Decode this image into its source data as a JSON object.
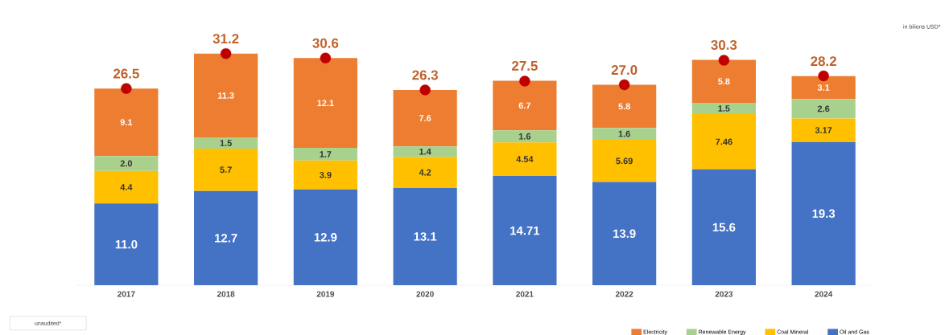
{
  "chart_data": {
    "type": "bar",
    "stacked": true,
    "legend": "bottom right",
    "categories": [
      "2017",
      "2018",
      "2019",
      "2020",
      "2021",
      "2022",
      "2023",
      "2024"
    ],
    "series": [
      {
        "name": "Oil and Gas",
        "color": "#4472c4",
        "values": [
          11.0,
          12.7,
          12.9,
          13.1,
          14.71,
          13.9,
          15.6,
          19.3
        ],
        "value_labels": [
          "11.0",
          "12.7",
          "12.9",
          "13.1",
          "14.71",
          "13.9",
          "15.6",
          "19.3"
        ]
      },
      {
        "name": "Coal Mineral",
        "color": "#ffc000",
        "values": [
          4.4,
          5.7,
          3.9,
          4.2,
          4.54,
          5.69,
          7.46,
          3.17
        ],
        "value_labels": [
          "4.4",
          "5.7",
          "3.9",
          "4.2",
          "4.54",
          "5.69",
          "7.46",
          "3.17"
        ]
      },
      {
        "name": "Renewable Energy",
        "color": "#a9d18e",
        "values": [
          2.0,
          1.5,
          1.7,
          1.4,
          1.6,
          1.6,
          1.5,
          2.6
        ],
        "value_labels": [
          "2.0",
          "1.5",
          "1.7",
          "1.4",
          "1.6",
          "1.6",
          "1.5",
          "2.6"
        ]
      },
      {
        "name": "Electricity",
        "color": "#ed7d31",
        "values": [
          9.1,
          11.3,
          12.1,
          7.6,
          6.7,
          5.8,
          5.8,
          3.1
        ],
        "value_labels": [
          "9.1",
          "11.3",
          "12.1",
          "7.6",
          "6.7",
          "5.8",
          "5.8",
          "3.1"
        ]
      },
      {
        "type": "scatter",
        "color": "#c00000",
        "values": [
          26.5,
          31.2,
          30.6,
          26.3,
          27.5,
          27.0,
          30.3,
          28.2
        ]
      }
    ],
    "totals": [
      "26.5",
      "31.2",
      "30.6",
      "26.3",
      "27.5",
      "27.0",
      "30.3",
      "28.2"
    ],
    "annotations": [
      "in bilions USD*",
      "unaudited*"
    ]
  }
}
